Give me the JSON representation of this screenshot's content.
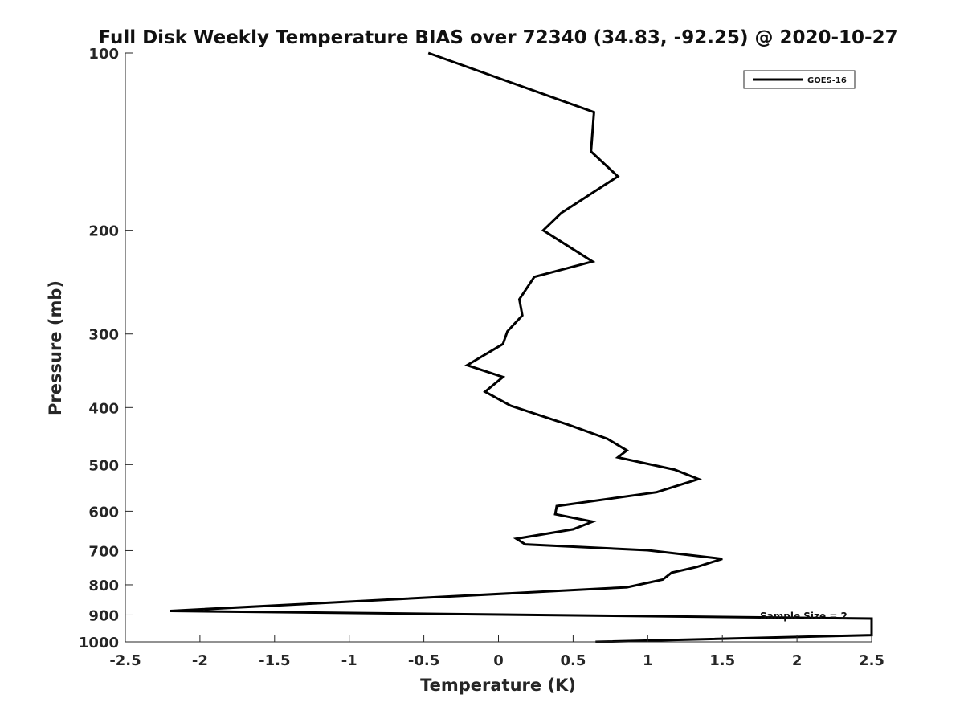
{
  "chart_data": {
    "type": "line",
    "title": "Full Disk Weekly Temperature BIAS over 72340 (34.83, -92.25) @ 2020-10-27",
    "xlabel": "Temperature (K)",
    "ylabel": "Pressure (mb)",
    "xlim": [
      -2.5,
      2.5
    ],
    "ylim": [
      1000,
      100
    ],
    "yscale": "log",
    "yreverse": true,
    "grid": false,
    "legend_position": "top-right",
    "x_ticks": [
      "-2.5",
      "-2",
      "-1.5",
      "-1",
      "-0.5",
      "0",
      "0.5",
      "1",
      "1.5",
      "2",
      "2.5"
    ],
    "y_ticks": [
      "100",
      "200",
      "300",
      "400",
      "500",
      "600",
      "700",
      "800",
      "900",
      "1000"
    ],
    "series": [
      {
        "name": "GOES-16",
        "color": "#000000",
        "x": [
          -0.47,
          0.64,
          0.62,
          0.8,
          0.42,
          0.3,
          0.63,
          0.24,
          0.14,
          0.16,
          0.06,
          0.03,
          -0.21,
          0.03,
          -0.09,
          0.08,
          0.47,
          0.73,
          0.86,
          0.8,
          1.18,
          1.34,
          1.06,
          0.39,
          0.38,
          0.63,
          0.5,
          0.12,
          0.18,
          1.0,
          1.5,
          1.33,
          1.16,
          1.1,
          0.86,
          -2.2,
          2.5,
          2.5,
          0.65
        ],
        "y": [
          100,
          126,
          147,
          162,
          187,
          200,
          226,
          240,
          262,
          279,
          297,
          312,
          339,
          355,
          376,
          397,
          428,
          452,
          473,
          486,
          510,
          529,
          557,
          588,
          607,
          625,
          644,
          668,
          683,
          699,
          723,
          746,
          763,
          784,
          808,
          886,
          913,
          974,
          1000
        ]
      }
    ],
    "annotations": [
      "Sample Size = 2"
    ]
  }
}
